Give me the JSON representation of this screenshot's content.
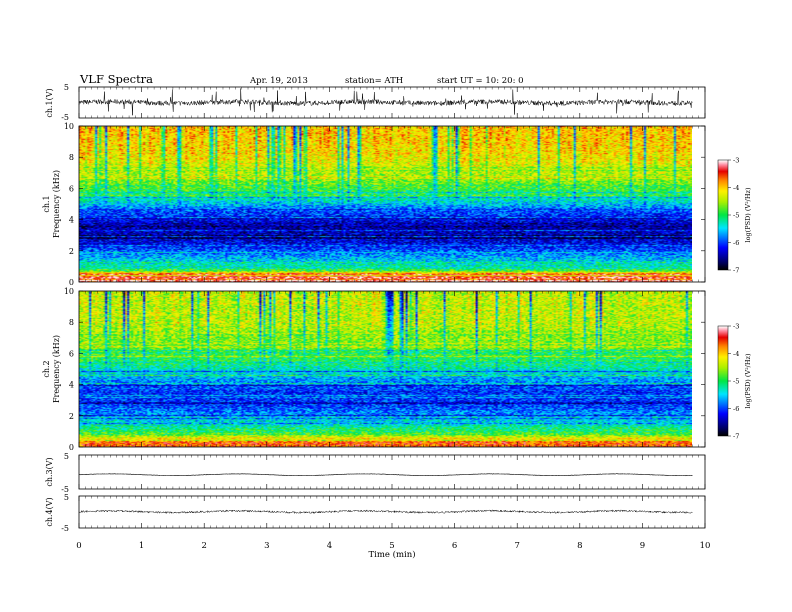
{
  "header": {
    "title": "VLF  Spectra",
    "date": "Apr. 19, 2013",
    "station": "station= ATH",
    "start": "start  UT =    10: 20: 0"
  },
  "chart_data": {
    "type": "heatmap",
    "xlabel": "Time  (min)",
    "xlim": [
      0,
      10
    ],
    "xticks": [
      "0",
      "1",
      "2",
      "3",
      "4",
      "5",
      "6",
      "7",
      "8",
      "9",
      "10"
    ],
    "data_end_min": 9.8,
    "panels": [
      {
        "type": "line",
        "ylabel": "ch.1(V)",
        "ylim": [
          -5,
          5
        ],
        "yticks": [
          "5",
          "-5"
        ],
        "baseline": 0,
        "noise_amplitude": 0.8,
        "spike_amplitude": 4
      },
      {
        "type": "heatmap",
        "channel_label": "ch.1",
        "ylabel": "Frequency  (kHz)",
        "ylim": [
          0,
          10
        ],
        "yticks": [
          "0",
          "2",
          "4",
          "6",
          "8",
          "10"
        ],
        "colorbar": {
          "label": "log(PSD) (V²/Hz)",
          "range": [
            -7,
            -3
          ],
          "ticks": [
            "-3",
            "-4",
            "-5",
            "-6",
            "-7"
          ]
        },
        "approx_log_psd_profile": [
          {
            "f_khz": 0.3,
            "log_psd": -3.4
          },
          {
            "f_khz": 0.8,
            "log_psd": -5.2
          },
          {
            "f_khz": 1.5,
            "log_psd": -5.6
          },
          {
            "f_khz": 2.5,
            "log_psd": -6.3
          },
          {
            "f_khz": 3.5,
            "log_psd": -6.5
          },
          {
            "f_khz": 4.5,
            "log_psd": -6.0
          },
          {
            "f_khz": 5.5,
            "log_psd": -5.1
          },
          {
            "f_khz": 6.5,
            "log_psd": -4.6
          },
          {
            "f_khz": 7.5,
            "log_psd": -4.3
          },
          {
            "f_khz": 8.5,
            "log_psd": -4.1
          },
          {
            "f_khz": 9.5,
            "log_psd": -4.0
          }
        ]
      },
      {
        "type": "heatmap",
        "channel_label": "ch.2",
        "ylabel": "Frequency  (kHz)",
        "ylim": [
          0,
          10
        ],
        "yticks": [
          "0",
          "2",
          "4",
          "6",
          "8",
          "10"
        ],
        "colorbar": {
          "label": "log(PSD) (V²/Hz)",
          "range": [
            -7,
            -3
          ],
          "ticks": [
            "-3",
            "-4",
            "-5",
            "-6",
            "-7"
          ]
        },
        "approx_log_psd_profile": [
          {
            "f_khz": 0.3,
            "log_psd": -3.6
          },
          {
            "f_khz": 0.8,
            "log_psd": -4.8
          },
          {
            "f_khz": 1.5,
            "log_psd": -5.4
          },
          {
            "f_khz": 2.5,
            "log_psd": -6.0
          },
          {
            "f_khz": 3.5,
            "log_psd": -6.1
          },
          {
            "f_khz": 4.5,
            "log_psd": -5.6
          },
          {
            "f_khz": 5.5,
            "log_psd": -5.0
          },
          {
            "f_khz": 6.5,
            "log_psd": -4.7
          },
          {
            "f_khz": 7.5,
            "log_psd": -4.5
          },
          {
            "f_khz": 8.5,
            "log_psd": -4.4
          },
          {
            "f_khz": 9.5,
            "log_psd": -4.4
          }
        ]
      },
      {
        "type": "line",
        "ylabel": "ch.3(V)",
        "ylim": [
          -5,
          5
        ],
        "yticks": [
          "5",
          "-5"
        ],
        "baseline": -0.8,
        "noise_amplitude": 0.05,
        "spike_amplitude": 0
      },
      {
        "type": "line",
        "ylabel": "ch.4(V)",
        "ylim": [
          -5,
          5
        ],
        "yticks": [
          "5",
          "-5"
        ],
        "baseline": 0.1,
        "noise_amplitude": 0.3,
        "spike_amplitude": 0
      }
    ]
  }
}
